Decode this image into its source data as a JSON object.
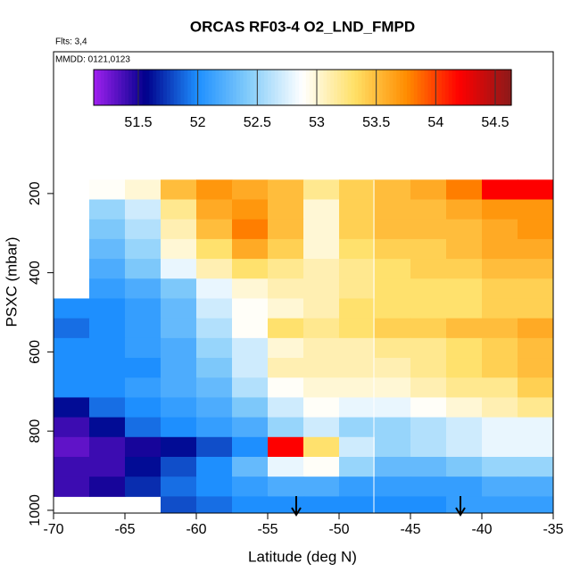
{
  "chart_data": {
    "type": "heatmap",
    "title": "ORCAS RF03-4 O2_LND_FMPD",
    "subtitles": [
      "Flts: 3,4",
      "MMDD: 0121,0123"
    ],
    "x_label": "Latitude (deg N)",
    "y_label": "PSXC (mbar)",
    "xlim": [
      -70,
      -35
    ],
    "xticks": [
      -70,
      -65,
      -60,
      -55,
      -50,
      -45,
      -40,
      -35
    ],
    "ylim": [
      1007,
      -158
    ],
    "yticks": [
      200,
      400,
      600,
      800,
      1000
    ],
    "xbins": [
      -70,
      -67.5,
      -65,
      -62.5,
      -60,
      -57.5,
      -55,
      -52.5,
      -50,
      -47.5,
      -45,
      -42.5,
      -40,
      -37.5,
      -35
    ],
    "ybins": [
      165,
      215,
      265,
      315,
      365,
      415,
      465,
      515,
      565,
      615,
      665,
      715,
      765,
      815,
      865,
      915,
      965,
      1015
    ],
    "values": [
      [
        null,
        52.9,
        53.0,
        53.5,
        53.7,
        53.6,
        53.5,
        53.2,
        53.4,
        53.5,
        53.6,
        53.8,
        54.2,
        54.2
      ],
      [
        null,
        52.5,
        52.7,
        53.2,
        53.6,
        53.7,
        53.5,
        53.0,
        53.4,
        53.5,
        53.5,
        53.6,
        53.7,
        53.7
      ],
      [
        null,
        52.4,
        52.6,
        53.1,
        53.5,
        53.8,
        53.5,
        53.0,
        53.4,
        53.5,
        53.5,
        53.5,
        53.6,
        53.7
      ],
      [
        null,
        52.3,
        52.5,
        53.0,
        53.3,
        53.6,
        53.4,
        53.0,
        53.3,
        53.4,
        53.4,
        53.5,
        53.6,
        53.6
      ],
      [
        null,
        52.2,
        52.4,
        52.8,
        53.1,
        53.3,
        53.2,
        53.1,
        53.2,
        53.3,
        53.4,
        53.4,
        53.5,
        53.5
      ],
      [
        null,
        52.1,
        52.2,
        52.4,
        52.8,
        53.0,
        53.1,
        53.1,
        53.2,
        53.3,
        53.3,
        53.3,
        53.4,
        53.4
      ],
      [
        52.0,
        52.0,
        52.1,
        52.3,
        52.7,
        52.9,
        53.0,
        53.1,
        53.3,
        53.3,
        53.3,
        53.3,
        53.4,
        53.4
      ],
      [
        51.9,
        52.0,
        52.1,
        52.3,
        52.6,
        52.9,
        53.3,
        53.2,
        53.3,
        53.4,
        53.4,
        53.5,
        53.5,
        53.6
      ],
      [
        52.0,
        52.0,
        52.1,
        52.2,
        52.5,
        52.7,
        53.0,
        53.1,
        53.1,
        53.2,
        53.2,
        53.3,
        53.4,
        53.5
      ],
      [
        52.0,
        52.0,
        52.0,
        52.2,
        52.4,
        52.7,
        53.1,
        53.1,
        53.1,
        53.1,
        53.2,
        53.3,
        53.4,
        53.5
      ],
      [
        52.0,
        52.0,
        52.1,
        52.2,
        52.3,
        52.6,
        52.9,
        53.0,
        53.0,
        53.0,
        53.1,
        53.2,
        53.2,
        53.4
      ],
      [
        51.6,
        51.9,
        52.0,
        52.1,
        52.2,
        52.4,
        52.7,
        52.9,
        52.8,
        52.8,
        52.9,
        53.0,
        53.1,
        53.2
      ],
      [
        51.4,
        51.6,
        51.9,
        52.0,
        52.1,
        52.2,
        52.5,
        52.7,
        52.5,
        52.5,
        52.6,
        52.7,
        52.8,
        52.8
      ],
      [
        51.3,
        51.4,
        51.5,
        51.6,
        51.8,
        52.0,
        54.2,
        53.3,
        52.7,
        52.5,
        52.6,
        52.7,
        52.8,
        52.8
      ],
      [
        51.4,
        51.4,
        51.6,
        51.8,
        52.0,
        52.3,
        52.8,
        52.9,
        52.5,
        52.3,
        52.3,
        52.4,
        52.5,
        52.5
      ],
      [
        51.4,
        51.5,
        51.7,
        51.9,
        52.0,
        52.1,
        52.2,
        52.2,
        52.1,
        52.1,
        52.1,
        52.1,
        52.2,
        52.2
      ],
      [
        null,
        null,
        null,
        51.8,
        51.9,
        52.0,
        52.0,
        52.0,
        52.0,
        52.0,
        52.0,
        52.1,
        52.1,
        52.1
      ]
    ],
    "colorbar": {
      "lim": [
        51.125,
        54.635
      ],
      "ticks": [
        51.5,
        52.0,
        52.5,
        53.0,
        53.5,
        54.0,
        54.5
      ],
      "colors": [
        "#a020f0",
        "#00008b",
        "#1e90ff",
        "#87cefa",
        "#ffffff",
        "#ffe066",
        "#ff8c00",
        "#ff0000",
        "#8b1a1a"
      ]
    }
  }
}
